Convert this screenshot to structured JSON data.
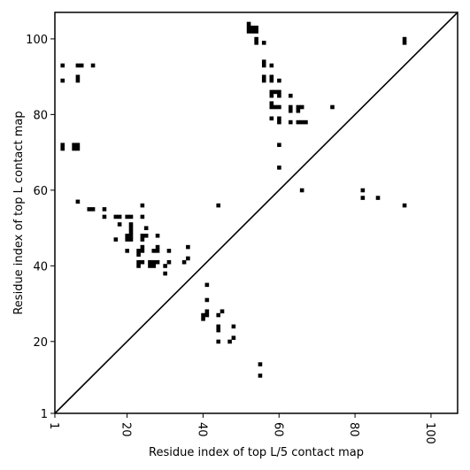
{
  "chart_data": {
    "type": "scatter",
    "title": "",
    "xlabel": "Residue index of top L/5 contact map",
    "ylabel": "Residue index of top L contact map",
    "xlim": [
      1,
      107
    ],
    "ylim": [
      1,
      107
    ],
    "x_ticks": [
      1,
      20,
      40,
      60,
      80,
      100
    ],
    "y_ticks": [
      1,
      20,
      40,
      60,
      80,
      100
    ],
    "x_tick_labels": [
      "1",
      "20",
      "40",
      "60",
      "80",
      "100"
    ],
    "y_tick_labels": [
      "1",
      "20",
      "40",
      "60",
      "80",
      "100"
    ],
    "diagonal": true,
    "grid": false,
    "marker_color": "#000000",
    "upper_triangle_points": [
      [
        3,
        93
      ],
      [
        3,
        89
      ],
      [
        7,
        93
      ],
      [
        8,
        93
      ],
      [
        11,
        93
      ],
      [
        7,
        90
      ],
      [
        7,
        89
      ],
      [
        3,
        72
      ],
      [
        3,
        71
      ],
      [
        6,
        72
      ],
      [
        6,
        71
      ],
      [
        7,
        72
      ],
      [
        7,
        71
      ],
      [
        7,
        57
      ],
      [
        10,
        55
      ],
      [
        11,
        55
      ],
      [
        14,
        55
      ],
      [
        14,
        53
      ],
      [
        17,
        53
      ],
      [
        18,
        53
      ],
      [
        20,
        53
      ],
      [
        21,
        53
      ],
      [
        18,
        51
      ],
      [
        21,
        51
      ],
      [
        21,
        50
      ],
      [
        21,
        49
      ],
      [
        20,
        48
      ],
      [
        21,
        48
      ],
      [
        20,
        47
      ],
      [
        21,
        47
      ],
      [
        17,
        47
      ],
      [
        20,
        44
      ],
      [
        24,
        56
      ],
      [
        24,
        53
      ],
      [
        25,
        50
      ],
      [
        24,
        48
      ],
      [
        25,
        48
      ],
      [
        28,
        48
      ],
      [
        24,
        47
      ],
      [
        24,
        45
      ],
      [
        23,
        44
      ],
      [
        24,
        44
      ],
      [
        23,
        43
      ],
      [
        27,
        44
      ],
      [
        28,
        44
      ],
      [
        28,
        45
      ],
      [
        31,
        44
      ],
      [
        23,
        41
      ],
      [
        24,
        41
      ],
      [
        26,
        41
      ],
      [
        27,
        41
      ],
      [
        28,
        41
      ],
      [
        23,
        40
      ],
      [
        26,
        40
      ],
      [
        27,
        40
      ],
      [
        30,
        40
      ],
      [
        31,
        41
      ],
      [
        30,
        38
      ],
      [
        36,
        45
      ],
      [
        36,
        42
      ],
      [
        35,
        41
      ],
      [
        44,
        56
      ]
    ],
    "lower_triangle_points": [
      [
        52,
        104
      ],
      [
        52,
        103
      ],
      [
        53,
        103
      ],
      [
        54,
        103
      ],
      [
        52,
        102
      ],
      [
        53,
        102
      ],
      [
        54,
        102
      ],
      [
        54,
        100
      ],
      [
        54,
        99
      ],
      [
        56,
        99
      ],
      [
        56,
        94
      ],
      [
        56,
        93
      ],
      [
        58,
        93
      ],
      [
        56,
        90
      ],
      [
        58,
        90
      ],
      [
        56,
        89
      ],
      [
        58,
        89
      ],
      [
        60,
        89
      ],
      [
        58,
        86
      ],
      [
        59,
        86
      ],
      [
        60,
        86
      ],
      [
        58,
        85
      ],
      [
        60,
        85
      ],
      [
        63,
        85
      ],
      [
        58,
        83
      ],
      [
        58,
        82
      ],
      [
        59,
        82
      ],
      [
        60,
        82
      ],
      [
        63,
        82
      ],
      [
        65,
        82
      ],
      [
        66,
        82
      ],
      [
        63,
        81
      ],
      [
        65,
        81
      ],
      [
        74,
        82
      ],
      [
        58,
        79
      ],
      [
        60,
        79
      ],
      [
        60,
        78
      ],
      [
        63,
        78
      ],
      [
        65,
        78
      ],
      [
        66,
        78
      ],
      [
        67,
        78
      ],
      [
        60,
        72
      ],
      [
        60,
        66
      ],
      [
        66,
        60
      ],
      [
        82,
        60
      ],
      [
        82,
        58
      ],
      [
        86,
        58
      ],
      [
        93,
        56
      ],
      [
        93,
        100
      ],
      [
        93,
        99
      ],
      [
        41,
        35
      ],
      [
        41,
        31
      ],
      [
        41,
        28
      ],
      [
        40,
        27
      ],
      [
        41,
        27
      ],
      [
        40,
        26
      ],
      [
        45,
        28
      ],
      [
        44,
        27
      ],
      [
        44,
        24
      ],
      [
        44,
        23
      ],
      [
        48,
        24
      ],
      [
        44,
        20
      ],
      [
        47,
        20
      ],
      [
        48,
        21
      ],
      [
        55,
        14
      ],
      [
        55,
        11
      ]
    ]
  }
}
